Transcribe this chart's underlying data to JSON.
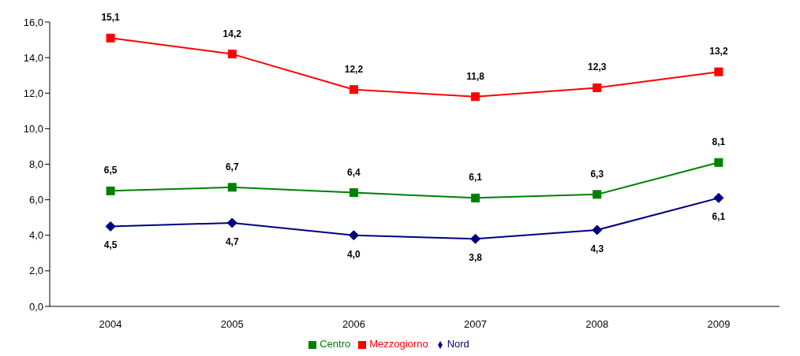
{
  "chart_data": {
    "type": "line",
    "categories": [
      "2004",
      "2005",
      "2006",
      "2007",
      "2008",
      "2009"
    ],
    "series": [
      {
        "name": "Nord",
        "color": "#000080",
        "marker": "diamond",
        "values": [
          4.5,
          4.7,
          4.0,
          3.8,
          4.3,
          6.1
        ],
        "value_labels": [
          "4,5",
          "4,7",
          "4,0",
          "3,8",
          "4,3",
          "6,1"
        ]
      },
      {
        "name": "Centro",
        "color": "#008000",
        "marker": "square",
        "values": [
          6.5,
          6.7,
          6.4,
          6.1,
          6.3,
          8.1
        ],
        "value_labels": [
          "6,5",
          "6,7",
          "6,4",
          "6,1",
          "6,3",
          "8,1"
        ]
      },
      {
        "name": "Mezzogiorno",
        "color": "#ff0000",
        "marker": "square",
        "values": [
          15.1,
          14.2,
          12.2,
          11.8,
          12.3,
          13.2
        ],
        "value_labels": [
          "15,1",
          "14,2",
          "12,2",
          "11,8",
          "12,3",
          "13,2"
        ]
      }
    ],
    "ylim": [
      0,
      16
    ],
    "yticks": [
      {
        "value": 0,
        "label": "0,0"
      },
      {
        "value": 2,
        "label": "2,0"
      },
      {
        "value": 4,
        "label": "4,0"
      },
      {
        "value": 6,
        "label": "6,0"
      },
      {
        "value": 8,
        "label": "8,0"
      },
      {
        "value": 10,
        "label": "10,0"
      },
      {
        "value": 12,
        "label": "12,0"
      },
      {
        "value": 14,
        "label": "14,0"
      },
      {
        "value": 16,
        "label": "16,0"
      }
    ],
    "grid": false,
    "legend": "bottom"
  }
}
